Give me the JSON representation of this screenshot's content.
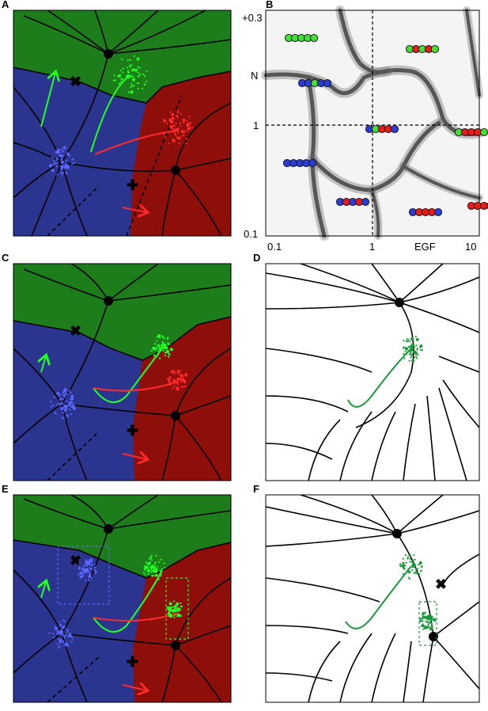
{
  "panels": {
    "a": {
      "label": "A"
    },
    "b": {
      "label": "B",
      "y_axis_label": "N",
      "x_axis_label": "EGF",
      "y_ticks": [
        "+0.3",
        "1",
        "0.1"
      ],
      "x_ticks": [
        "0.1",
        "1",
        "10"
      ]
    },
    "c": {
      "label": "C"
    },
    "d": {
      "label": "D"
    },
    "e": {
      "label": "E"
    },
    "f": {
      "label": "F"
    }
  },
  "colors": {
    "green": "#1d7d1a",
    "blue": "#2b3590",
    "red": "#8e0f0a",
    "bright_green": "#22ff22",
    "bright_blue": "#5b67ff",
    "bright_red": "#ff2a2a",
    "dark_green": "#1a9a3a"
  },
  "bead_groups": [
    [
      "green",
      "green",
      "green",
      "green",
      "green"
    ],
    [
      "green",
      "red",
      "green",
      "red",
      "green"
    ],
    [
      "blue",
      "blue",
      "green",
      "blue",
      "blue"
    ],
    [
      "blue",
      "green",
      "red",
      "red",
      "blue"
    ],
    [
      "green",
      "red",
      "red",
      "red",
      "green"
    ],
    [
      "blue",
      "blue",
      "blue",
      "blue",
      "blue"
    ],
    [
      "blue",
      "red",
      "blue",
      "red",
      "blue"
    ],
    [
      "blue",
      "red",
      "red",
      "red",
      "blue"
    ],
    [
      "red",
      "red",
      "red",
      "red",
      "red"
    ]
  ]
}
